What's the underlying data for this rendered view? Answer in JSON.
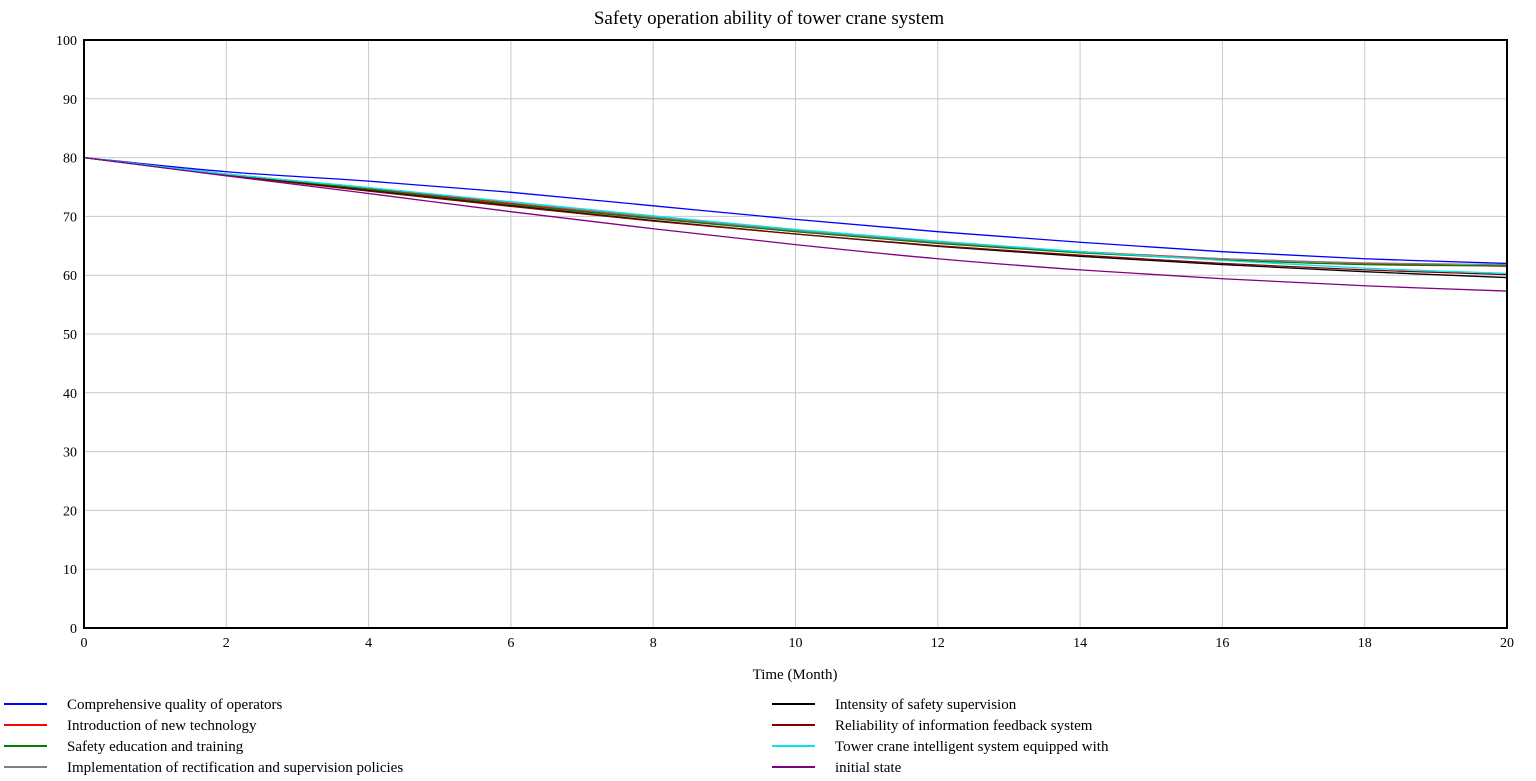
{
  "chart_data": {
    "type": "line",
    "title": "Safety operation ability of tower crane system",
    "xlabel": "Time (Month)",
    "ylabel": "",
    "xlim": [
      0,
      20
    ],
    "ylim": [
      0,
      100
    ],
    "xticks": [
      0,
      2,
      4,
      6,
      8,
      10,
      12,
      14,
      16,
      18,
      20
    ],
    "yticks": [
      0,
      10,
      20,
      30,
      40,
      50,
      60,
      70,
      80,
      90,
      100
    ],
    "grid": true,
    "legend_position": "bottom",
    "x": [
      0,
      2,
      4,
      6,
      8,
      10,
      12,
      14,
      16,
      18,
      20
    ],
    "series": [
      {
        "name": "Comprehensive quality of operators",
        "color": "#0000ff",
        "values": [
          80,
          77.6,
          76.0,
          74.1,
          71.8,
          69.5,
          67.4,
          65.6,
          64.0,
          62.8,
          62.0
        ]
      },
      {
        "name": "Introduction of new technology",
        "color": "#ff0000",
        "values": [
          80,
          77.2,
          74.8,
          72.2,
          69.7,
          67.5,
          65.5,
          64.0,
          62.8,
          62.0,
          61.5
        ]
      },
      {
        "name": "Safety education and training",
        "color": "#008000",
        "values": [
          80,
          77.1,
          74.6,
          72.0,
          69.6,
          67.4,
          65.4,
          63.8,
          62.6,
          61.8,
          61.6
        ]
      },
      {
        "name": "Implementation of rectification and supervision policies",
        "color": "#808080",
        "values": [
          80,
          77.2,
          74.9,
          72.4,
          69.9,
          67.6,
          65.6,
          64.0,
          62.8,
          62.1,
          61.8
        ]
      },
      {
        "name": "Intensity of safety supervision",
        "color": "#000000",
        "values": [
          80,
          77.0,
          74.4,
          71.8,
          69.3,
          67.0,
          64.9,
          63.2,
          61.8,
          60.6,
          59.6
        ]
      },
      {
        "name": "Reliability of information feedback system",
        "color": "#800000",
        "values": [
          80,
          77.0,
          74.3,
          71.7,
          69.2,
          67.0,
          65.0,
          63.4,
          62.0,
          60.9,
          60.1
        ]
      },
      {
        "name": "Tower crane intelligent system equipped with",
        "color": "#00e5ee",
        "values": [
          80,
          77.2,
          74.9,
          72.5,
          70.1,
          67.8,
          65.8,
          64.0,
          62.5,
          61.2,
          60.3
        ]
      },
      {
        "name": "initial state",
        "color": "#800080",
        "values": [
          80,
          76.9,
          73.9,
          70.8,
          67.9,
          65.2,
          62.8,
          60.9,
          59.4,
          58.2,
          57.3
        ]
      }
    ]
  }
}
